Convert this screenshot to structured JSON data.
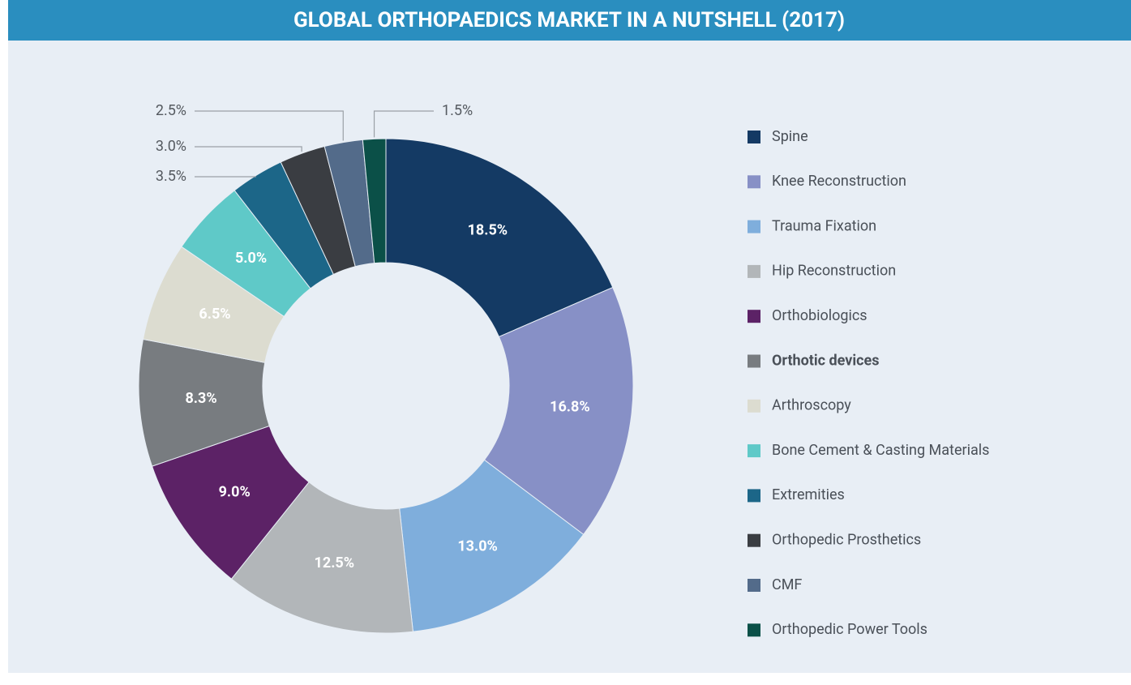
{
  "chart_data": {
    "type": "donut",
    "title": "GLOBAL ORTHOPAEDICS MARKET IN A NUTSHELL (2017)",
    "categories": [
      "Spine",
      "Knee Reconstruction",
      "Trauma Fixation",
      "Hip Reconstruction",
      "Orthobiologics",
      "Orthotic devices",
      "Arthroscopy",
      "Bone Cement & Casting Materials",
      "Extremities",
      "Orthopedic Prosthetics",
      "CMF",
      "Orthopedic Power Tools"
    ],
    "values": [
      18.5,
      16.8,
      13.0,
      12.5,
      9.0,
      8.3,
      6.5,
      5.0,
      3.5,
      3.0,
      2.5,
      1.5
    ],
    "value_labels": [
      "18.5%",
      "16.8%",
      "13.0%",
      "12.5%",
      "9.0%",
      "8.3%",
      "6.5%",
      "5.0%",
      "3.5%",
      "3.0%",
      "2.5%",
      "1.5%"
    ],
    "colors": [
      "#143a64",
      "#8790c6",
      "#7faedc",
      "#b2b6b9",
      "#5c2266",
      "#787c80",
      "#dcdcd0",
      "#5fc9c8",
      "#1c6688",
      "#3a3d42",
      "#536b8a",
      "#0b5048"
    ],
    "legend": "right"
  }
}
